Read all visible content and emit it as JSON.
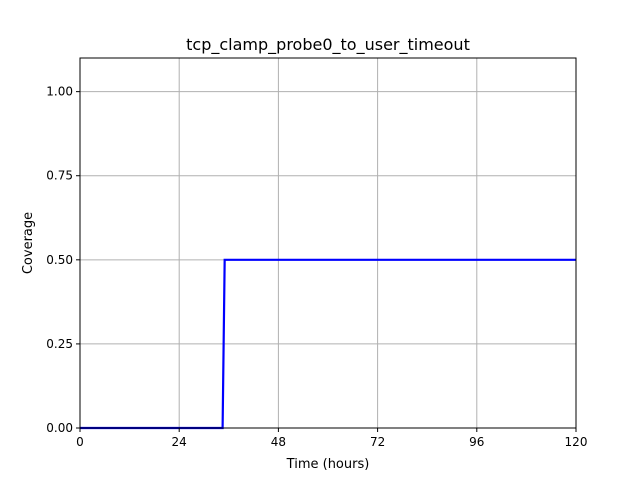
{
  "chart_data": {
    "type": "line",
    "title": "tcp_clamp_probe0_to_user_timeout",
    "xlabel": "Time (hours)",
    "ylabel": "Coverage",
    "xlim": [
      0,
      120
    ],
    "ylim": [
      0,
      1.1
    ],
    "xticks": [
      0,
      24,
      48,
      72,
      96,
      120
    ],
    "xtick_labels": [
      "0",
      "24",
      "48",
      "72",
      "96",
      "120"
    ],
    "yticks": [
      0,
      0.25,
      0.5,
      0.75,
      1.0
    ],
    "ytick_labels": [
      "0.00",
      "0.25",
      "0.50",
      "0.75",
      "1.00"
    ],
    "grid": true,
    "series": [
      {
        "color": "#0000ff",
        "x": [
          0,
          34.5,
          35.0,
          120
        ],
        "y": [
          0.0,
          0.0,
          0.5,
          0.5
        ]
      }
    ]
  }
}
